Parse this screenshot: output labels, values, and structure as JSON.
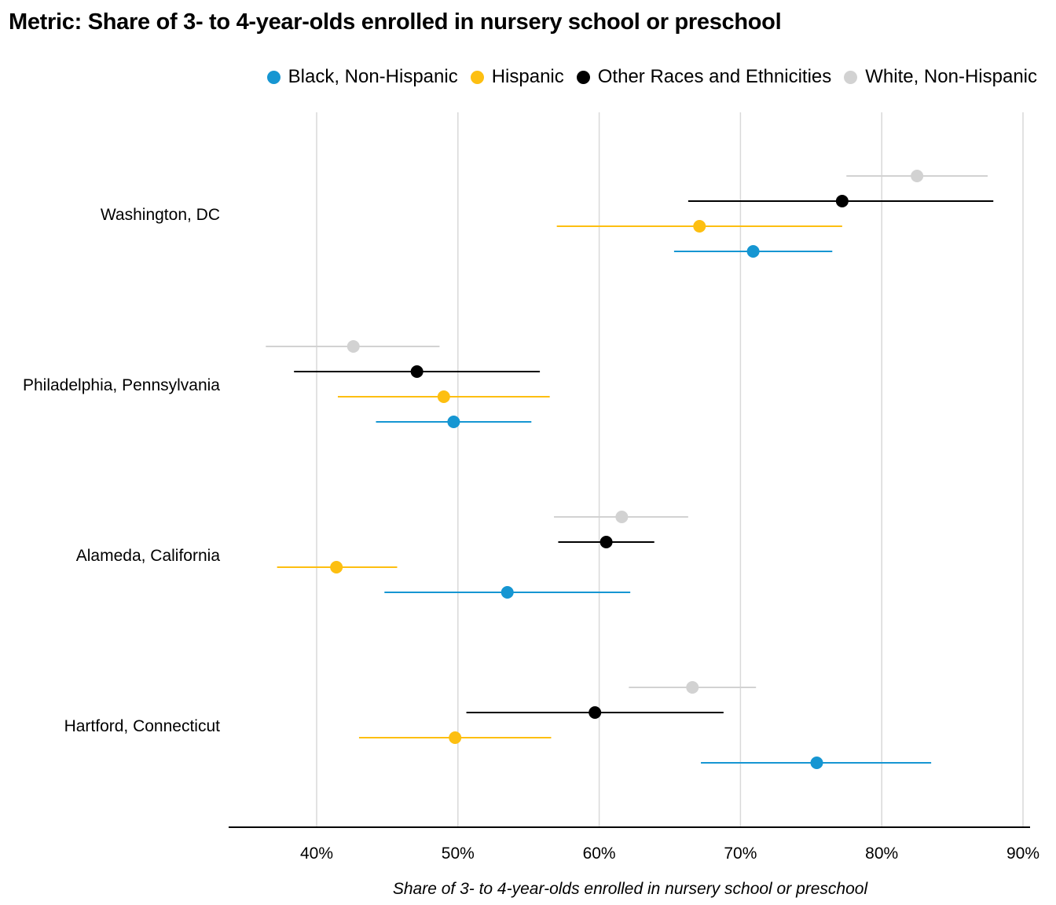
{
  "title": "Metric: Share of 3- to 4-year-olds enrolled in nursery school or preschool",
  "legend": [
    {
      "label": "Black, Non-Hispanic",
      "color": "#1696d2"
    },
    {
      "label": "Hispanic",
      "color": "#fdbf11"
    },
    {
      "label": "Other Races and Ethnicities",
      "color": "#000000"
    },
    {
      "label": "White, Non-Hispanic",
      "color": "#d2d2d2"
    }
  ],
  "chart_data": {
    "type": "scatter",
    "title": "Metric: Share of 3- to 4-year-olds enrolled in nursery school or preschool",
    "xlabel": "Share of 3- to 4-year-olds enrolled in nursery school or preschool",
    "ylabel": "",
    "xlim": [
      34,
      90.5
    ],
    "xticks": [
      40,
      50,
      60,
      70,
      80,
      90
    ],
    "xtick_labels": [
      "40%",
      "50%",
      "60%",
      "70%",
      "80%",
      "90%"
    ],
    "grid": "vertical",
    "legend_position": "top-right",
    "categories": [
      "Washington, DC",
      "Philadelphia, Pennsylvania",
      "Alameda, California",
      "Hartford, Connecticut"
    ],
    "series": [
      {
        "name": "Black, Non-Hispanic",
        "color": "#1696d2",
        "values": [
          70.9,
          49.7,
          53.5,
          75.4
        ],
        "lower": [
          65.3,
          44.2,
          44.8,
          67.2
        ],
        "upper": [
          76.5,
          55.2,
          62.2,
          83.5
        ]
      },
      {
        "name": "Hispanic",
        "color": "#fdbf11",
        "values": [
          67.1,
          49.0,
          41.4,
          49.8
        ],
        "lower": [
          57.0,
          41.5,
          37.2,
          43.0
        ],
        "upper": [
          77.2,
          56.5,
          45.7,
          56.6
        ]
      },
      {
        "name": "Other Races and Ethnicities",
        "color": "#000000",
        "values": [
          77.2,
          47.1,
          60.5,
          59.7
        ],
        "lower": [
          66.3,
          38.4,
          57.1,
          50.6
        ],
        "upper": [
          87.9,
          55.8,
          63.9,
          68.8
        ]
      },
      {
        "name": "White, Non-Hispanic",
        "color": "#d2d2d2",
        "values": [
          82.5,
          42.6,
          61.6,
          66.6
        ],
        "lower": [
          77.5,
          36.4,
          56.8,
          62.1
        ],
        "upper": [
          87.5,
          48.7,
          66.3,
          71.1
        ]
      }
    ]
  }
}
